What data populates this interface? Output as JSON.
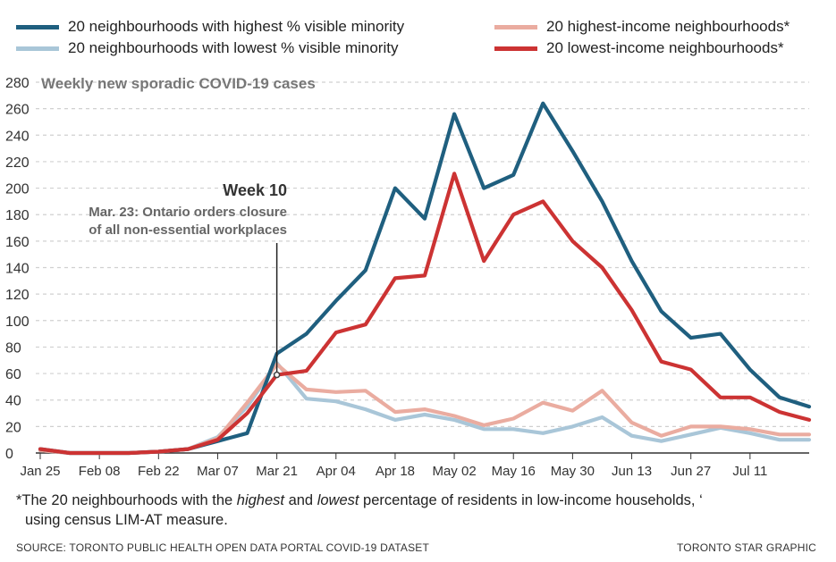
{
  "legend": {
    "items": [
      {
        "label": "20 neighbourhoods with highest % visible minority",
        "color": "#1f5f7f"
      },
      {
        "label": "20 neighbourhoods with lowest % visible minority",
        "color": "#a9c6d8"
      },
      {
        "label": "20 highest-income neighbourhoods*",
        "color": "#eaaca0"
      },
      {
        "label": "20 lowest-income neighbourhoods*",
        "color": "#cc3333"
      }
    ]
  },
  "annotation": {
    "heading": "Week 10",
    "line1": "Mar. 23: Ontario orders closure",
    "line2": "of all non-essential workplaces"
  },
  "footnote": {
    "line1_pre": "*The 20 neighbourhoods with the ",
    "line1_em1": "highest",
    "line1_mid": " and ",
    "line1_em2": "lowest",
    "line1_post": " percentage of residents in low-income households, ‘",
    "line2": "using census LIM-AT measure."
  },
  "source": "SOURCE: TORONTO PUBLIC HEALTH OPEN DATA PORTAL COVID-19 DATASET",
  "credit": "TORONTO STAR GRAPHIC",
  "chart_data": {
    "type": "line",
    "title": "Weekly new sporadic COVID-19 cases",
    "xlabel": "",
    "ylabel": "",
    "ylim": [
      0,
      280
    ],
    "yticks": [
      0,
      20,
      40,
      60,
      80,
      100,
      120,
      140,
      160,
      180,
      200,
      220,
      240,
      260,
      280
    ],
    "grid": true,
    "legend_position": "top",
    "x": [
      "Jan 25",
      "Feb 01",
      "Feb 08",
      "Feb 15",
      "Feb 22",
      "Feb 29",
      "Mar 07",
      "Mar 14",
      "Mar 21",
      "Mar 28",
      "Apr 04",
      "Apr 11",
      "Apr 18",
      "Apr 25",
      "May 02",
      "May 09",
      "May 16",
      "May 23",
      "May 30",
      "Jun 06",
      "Jun 13",
      "Jun 20",
      "Jun 27",
      "Jul 04",
      "Jul 11",
      "Jul 18",
      "Jul 25"
    ],
    "x_tick_labels": [
      "Jan 25",
      "Feb 08",
      "Feb 22",
      "Mar 07",
      "Mar 21",
      "Apr 04",
      "Apr 18",
      "May 02",
      "May 16",
      "May 30",
      "Jun 13",
      "Jun 27",
      "Jul 11"
    ],
    "annotation_x": "Mar 21",
    "series": [
      {
        "name": "20 neighbourhoods with highest % visible minority",
        "color": "#1f5f7f",
        "values": [
          3,
          0,
          0,
          0,
          1,
          3,
          9,
          15,
          75,
          90,
          115,
          138,
          200,
          177,
          256,
          200,
          210,
          264,
          228,
          190,
          145,
          107,
          87,
          90,
          63,
          42,
          35
        ]
      },
      {
        "name": "20 neighbourhoods with lowest % visible minority",
        "color": "#a9c6d8",
        "values": [
          2,
          0,
          0,
          0,
          1,
          3,
          12,
          35,
          68,
          41,
          39,
          33,
          25,
          29,
          25,
          18,
          18,
          15,
          20,
          27,
          13,
          9,
          14,
          19,
          15,
          10,
          10
        ]
      },
      {
        "name": "20 highest-income neighbourhoods*",
        "color": "#eaaca0",
        "values": [
          2,
          0,
          0,
          0,
          1,
          3,
          11,
          38,
          67,
          48,
          46,
          47,
          31,
          33,
          28,
          21,
          26,
          38,
          32,
          47,
          23,
          13,
          20,
          20,
          18,
          14,
          14
        ]
      },
      {
        "name": "20 lowest-income neighbourhoods*",
        "color": "#cc3333",
        "values": [
          3,
          0,
          0,
          0,
          1,
          3,
          10,
          30,
          59,
          62,
          91,
          97,
          132,
          134,
          211,
          145,
          180,
          190,
          160,
          140,
          108,
          69,
          63,
          42,
          42,
          31,
          25
        ]
      }
    ]
  }
}
